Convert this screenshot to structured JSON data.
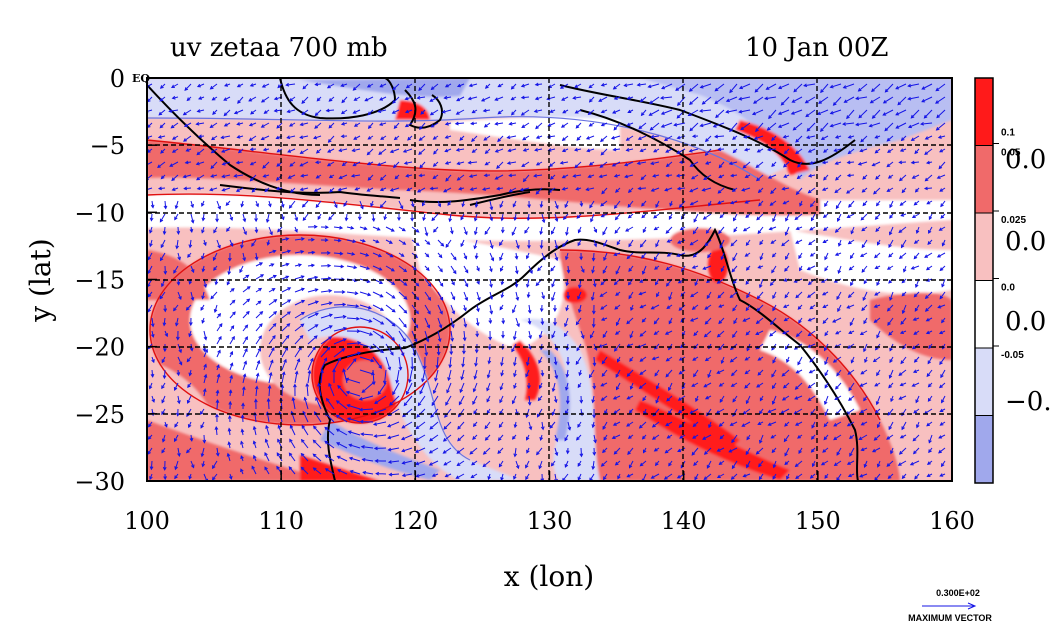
{
  "chart_data": {
    "type": "heatmap",
    "title": "uv zetaa 700 mb",
    "time_label": "10 Jan 00Z",
    "xlabel": "x (lon)",
    "ylabel": "y (lat)",
    "xlim": [
      100,
      160
    ],
    "ylim": [
      -30,
      0
    ],
    "x_ticks": [
      100,
      110,
      120,
      130,
      140,
      150,
      160
    ],
    "y_ticks": [
      {
        "value": 0,
        "label": "0"
      },
      {
        "value": -5,
        "label": "−5"
      },
      {
        "value": -10,
        "label": "−10"
      },
      {
        "value": -15,
        "label": "−15"
      },
      {
        "value": -20,
        "label": "−20"
      },
      {
        "value": -25,
        "label": "−25"
      },
      {
        "value": -30,
        "label": "−30"
      }
    ],
    "y_top_note": "EQ",
    "grid": true,
    "colorbar": {
      "levels": [
        {
          "color": "#ff1a1a",
          "label": "0.1"
        },
        {
          "color": "#f06a6a",
          "label": "0.05"
        },
        {
          "color": "#f8c0c0",
          "label": "0.025"
        },
        {
          "color": "#ffffff",
          "label": "0.0"
        },
        {
          "color": "#d8dcf8",
          "label": "-0.05"
        },
        {
          "color": "#a0a8ec",
          "label": ""
        }
      ],
      "big_labels": [
        "0.0",
        "0.0",
        "0.0",
        "−0."
      ]
    },
    "vector_key": {
      "magnitude": "0.300E+02",
      "caption": "MAXIMUM VECTOR"
    },
    "colors": {
      "coastline": "#000000",
      "vectors": "#1414e6",
      "grid": "#000000"
    }
  }
}
